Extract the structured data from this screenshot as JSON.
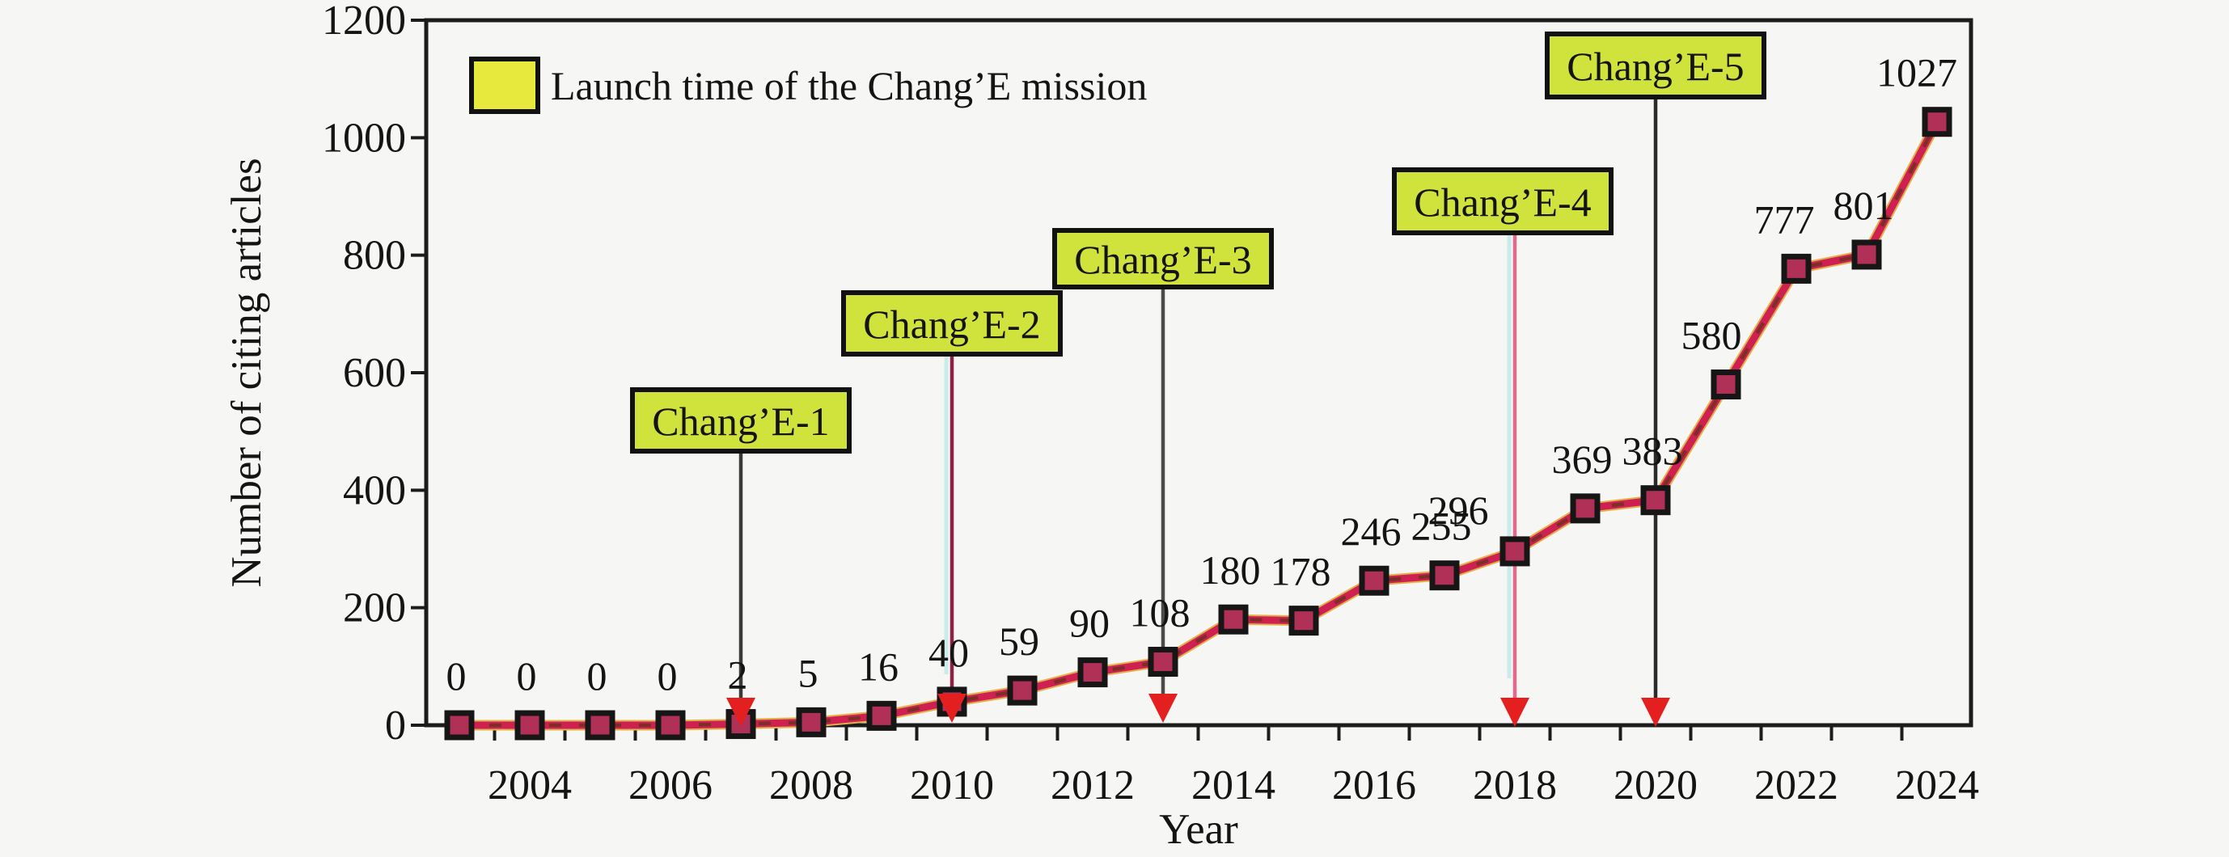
{
  "figure": {
    "background": "#f6f6f4"
  },
  "legend": {
    "label": "Launch time of the Chang’E mission",
    "swatch_color": "#e7ea3d"
  },
  "axes": {
    "x_title": "Year",
    "y_title": "Number of citing articles",
    "x_tick_years": [
      2004,
      2006,
      2008,
      2010,
      2012,
      2014,
      2016,
      2018,
      2020,
      2022,
      2024
    ],
    "y_tick_values": [
      0,
      200,
      400,
      600,
      800,
      1000,
      1200
    ]
  },
  "chart_data": {
    "type": "line",
    "title": "",
    "xlabel": "Year",
    "ylabel": "Number of citing articles",
    "x": [
      2003,
      2004,
      2005,
      2006,
      2007,
      2008,
      2009,
      2010,
      2011,
      2012,
      2013,
      2014,
      2015,
      2016,
      2017,
      2018,
      2019,
      2020,
      2021,
      2022,
      2023,
      2024
    ],
    "values": [
      0,
      0,
      0,
      0,
      2,
      5,
      16,
      40,
      59,
      90,
      108,
      180,
      178,
      246,
      255,
      296,
      369,
      383,
      580,
      777,
      801,
      1027
    ],
    "point_labels": [
      "0",
      "0",
      "0",
      "0",
      "2",
      "5",
      "16",
      "40",
      "59",
      "90",
      "108",
      "180",
      "178",
      "246",
      "255",
      "296",
      "369",
      "383",
      "580",
      "777",
      "801",
      "1027"
    ],
    "ylim": [
      0,
      1200
    ],
    "grid": false,
    "legend_position": "top-left",
    "marker": "square",
    "annotations": [
      {
        "label": "Chang’E-1",
        "year": 2007
      },
      {
        "label": "Chang’E-2",
        "year": 2010
      },
      {
        "label": "Chang’E-3",
        "year": 2013
      },
      {
        "label": "Chang’E-4",
        "year": 2018
      },
      {
        "label": "Chang’E-5",
        "year": 2020
      }
    ]
  },
  "colors": {
    "line_main": "#ce2152",
    "line_dash_overlay": "#7d2e28",
    "line_under_glow": "#e2b14a",
    "marker_fill": "#b03058",
    "marker_edge": "#161616",
    "annotation_box_fill": "#cfe33c",
    "annotation_box_edge": "#111111",
    "arrowhead_red": "#e41f1f",
    "axis_color": "#1c1c1c"
  }
}
